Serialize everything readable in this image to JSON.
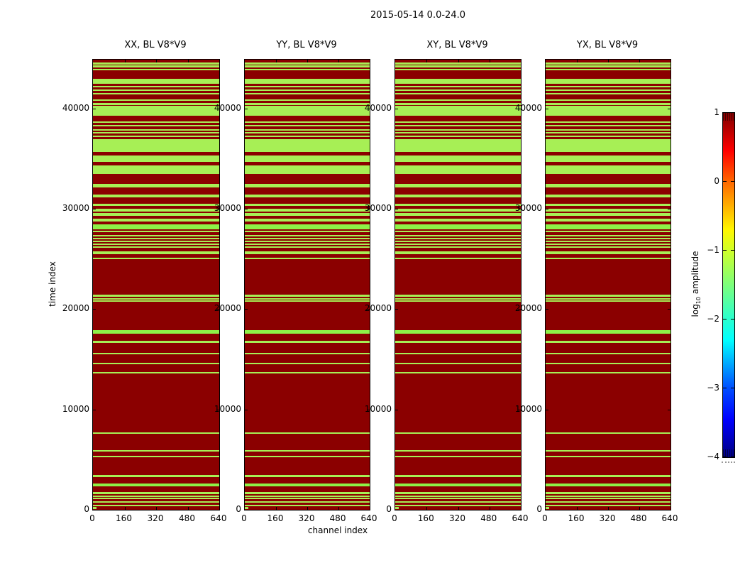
{
  "figure": {
    "title": "2015-05-14 0.0-24.0"
  },
  "chart_data": {
    "type": "heatmap",
    "title": "2015-05-14 0.0-24.0",
    "xlabel": "channel index",
    "ylabel": "time index",
    "xlim": [
      0,
      640
    ],
    "ylim": [
      0,
      44870
    ],
    "x_ticks": [
      0,
      160,
      320,
      480,
      640
    ],
    "y_ticks": [
      0,
      10000,
      20000,
      30000,
      40000
    ],
    "panels": [
      {
        "title": "XX, BL V8*V9"
      },
      {
        "title": "YY, BL V8*V9"
      },
      {
        "title": "XY, BL V8*V9"
      },
      {
        "title": "YX, BL V8*V9"
      }
    ],
    "colors": {
      "high_amplitude": "#8b0000",
      "band": "#a7ef55",
      "band_bright": "#8df247",
      "background": "#ffffff"
    },
    "green_bands_time": [
      [
        44380,
        44590
      ],
      [
        44090,
        44280
      ],
      [
        43790,
        43950
      ],
      [
        42470,
        42960
      ],
      [
        42090,
        42250
      ],
      [
        41780,
        41920
      ],
      [
        41380,
        41520
      ],
      [
        40790,
        40930
      ],
      [
        40340,
        40580
      ],
      [
        39280,
        40250
      ],
      [
        38550,
        38740
      ],
      [
        38220,
        38360
      ],
      [
        37790,
        37930
      ],
      [
        37490,
        37630
      ],
      [
        37180,
        37320
      ],
      [
        35650,
        36940
      ],
      [
        34700,
        35300
      ],
      [
        33460,
        34330
      ],
      [
        32150,
        32490
      ],
      [
        31120,
        31400
      ],
      [
        30270,
        30530
      ],
      [
        29750,
        29990
      ],
      [
        29320,
        29570
      ],
      [
        28710,
        29040
      ],
      [
        27980,
        28450,
        1
      ],
      [
        27650,
        27790
      ],
      [
        27230,
        27370
      ],
      [
        26940,
        27080
      ],
      [
        26680,
        26850
      ],
      [
        26420,
        26560
      ],
      [
        26120,
        26260
      ],
      [
        25500,
        25740
      ],
      [
        24980,
        25150
      ],
      [
        21250,
        21420
      ],
      [
        20970,
        21110
      ],
      [
        20710,
        20860
      ],
      [
        17570,
        17930,
        1
      ],
      [
        16650,
        16820
      ],
      [
        15480,
        15640
      ],
      [
        14490,
        14650
      ],
      [
        13590,
        13750
      ],
      [
        7570,
        7740
      ],
      [
        5800,
        5970
      ],
      [
        5210,
        5380
      ],
      [
        3280,
        3450
      ],
      [
        2320,
        2640,
        1
      ],
      [
        1580,
        1750
      ],
      [
        1300,
        1440
      ],
      [
        1060,
        1200
      ],
      [
        690,
        830
      ],
      [
        350,
        490
      ]
    ],
    "low_amp_corner": {
      "channels": [
        0,
        18
      ],
      "time": [
        0,
        250
      ]
    },
    "colorbar": {
      "label": "log10 amplitude",
      "label_parts": {
        "prefix": "log",
        "sub": "10",
        "suffix": " amplitude"
      },
      "ticks": [
        1,
        0,
        -1,
        -2,
        -3,
        -4
      ],
      "tick_labels": [
        "1",
        "0",
        "−1",
        "−2",
        "−3",
        "−4"
      ],
      "cmap": "jet",
      "gradient_top_to_bottom": [
        {
          "pos": 0,
          "color": "#800000"
        },
        {
          "pos": 11,
          "color": "#ff0000"
        },
        {
          "pos": 20,
          "color": "#ff6800"
        },
        {
          "pos": 34,
          "color": "#fff700"
        },
        {
          "pos": 40,
          "color": "#cfff29"
        },
        {
          "pos": 50,
          "color": "#7cff7c"
        },
        {
          "pos": 60,
          "color": "#29ffcf"
        },
        {
          "pos": 66,
          "color": "#00ffff"
        },
        {
          "pos": 80,
          "color": "#004dff"
        },
        {
          "pos": 89,
          "color": "#0000ff"
        },
        {
          "pos": 100,
          "color": "#000080"
        }
      ]
    }
  }
}
